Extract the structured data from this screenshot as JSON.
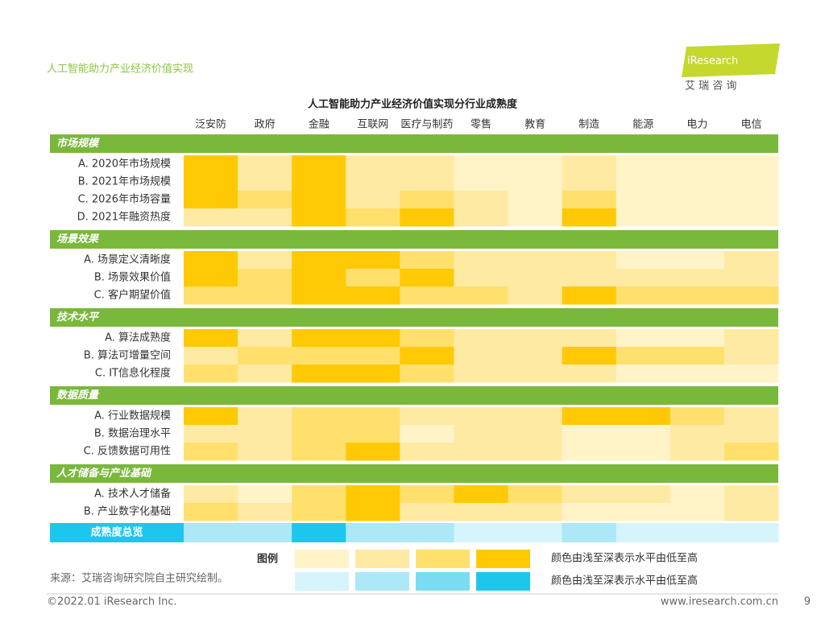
{
  "title": "人工智能助力产业经济价值实现",
  "logo": {
    "name": "iResearch",
    "subtitle": "艾 瑞 咨 询"
  },
  "chart_data": {
    "type": "heatmap",
    "title": "人工智能助力产业经济价值实现分行业成熟度",
    "categories": [
      "泛安防",
      "政府",
      "金融",
      "互联网",
      "医疗与制药",
      "零售",
      "教育",
      "制造",
      "能源",
      "电力",
      "电信"
    ],
    "groups": [
      {
        "name": "市场规模",
        "rows": [
          {
            "label": "A. 2020年市场规模",
            "values": [
              4,
              2,
              4,
              2,
              2,
              1,
              1,
              2,
              1,
              1,
              1
            ]
          },
          {
            "label": "B. 2021年市场规模",
            "values": [
              4,
              2,
              4,
              2,
              2,
              1,
              1,
              2,
              1,
              1,
              1
            ]
          },
          {
            "label": "C. 2026年市场容量",
            "values": [
              4,
              3,
              4,
              2,
              3,
              2,
              1,
              3,
              1,
              1,
              1
            ]
          },
          {
            "label": "D. 2021年融资热度",
            "values": [
              2,
              2,
              4,
              3,
              4,
              2,
              1,
              4,
              1,
              1,
              1
            ]
          }
        ]
      },
      {
        "name": "场景效果",
        "rows": [
          {
            "label": "A. 场景定义清晰度",
            "values": [
              4,
              2,
              4,
              4,
              3,
              2,
              2,
              2,
              1,
              1,
              2
            ]
          },
          {
            "label": "B. 场景效果价值",
            "values": [
              4,
              3,
              4,
              3,
              4,
              2,
              2,
              2,
              2,
              2,
              2
            ]
          },
          {
            "label": "C. 客户期望价值",
            "values": [
              3,
              3,
              4,
              4,
              3,
              3,
              2,
              4,
              3,
              3,
              3
            ]
          }
        ]
      },
      {
        "name": "技术水平",
        "rows": [
          {
            "label": "A. 算法成熟度",
            "values": [
              4,
              2,
              4,
              4,
              3,
              2,
              2,
              2,
              1,
              1,
              2
            ]
          },
          {
            "label": "B. 算法可增量空间",
            "values": [
              2,
              3,
              3,
              3,
              4,
              2,
              2,
              4,
              3,
              3,
              2
            ]
          },
          {
            "label": "C. IT信息化程度",
            "values": [
              3,
              2,
              4,
              4,
              3,
              2,
              2,
              2,
              1,
              1,
              1
            ]
          }
        ]
      },
      {
        "name": "数据质量",
        "rows": [
          {
            "label": "A. 行业数据规模",
            "values": [
              4,
              2,
              3,
              3,
              2,
              2,
              2,
              4,
              4,
              3,
              2
            ]
          },
          {
            "label": "B. 数据治理水平",
            "values": [
              2,
              2,
              3,
              3,
              1,
              2,
              2,
              1,
              1,
              2,
              2
            ]
          },
          {
            "label": "C. 反馈数据可用性",
            "values": [
              3,
              2,
              3,
              4,
              2,
              2,
              2,
              1,
              1,
              2,
              3
            ]
          }
        ]
      },
      {
        "name": "人才储备与产业基础",
        "rows": [
          {
            "label": "A. 技术人才储备",
            "values": [
              2,
              1,
              3,
              4,
              3,
              4,
              3,
              2,
              2,
              1,
              2
            ]
          },
          {
            "label": "B. 产业数字化基础",
            "values": [
              3,
              2,
              3,
              4,
              2,
              2,
              2,
              1,
              1,
              1,
              2
            ]
          }
        ]
      }
    ],
    "overview": {
      "label": "成熟度总览",
      "values": [
        2,
        2,
        4,
        2,
        2,
        1,
        1,
        2,
        1,
        1,
        1
      ]
    },
    "colors": [
      "#fff4c8",
      "#ffeaa3",
      "#ffe06c",
      "#ffc905"
    ],
    "overview_colors": [
      "#d6f4fb",
      "#ace8f7",
      "#7adcf3",
      "#1ec6ee"
    ],
    "legend": {
      "title": "图例",
      "levels": [
        1,
        2,
        3,
        4
      ],
      "notes": [
        "颜色由浅至深表示水平由低至高",
        "颜色由浅至深表示水平由低至高"
      ]
    }
  },
  "source": "来源：艾瑞咨询研究院自主研究绘制。",
  "footer_left": "©2022.01 iResearch Inc.",
  "footer_right": "www.iresearch.com.cn",
  "page": 9
}
